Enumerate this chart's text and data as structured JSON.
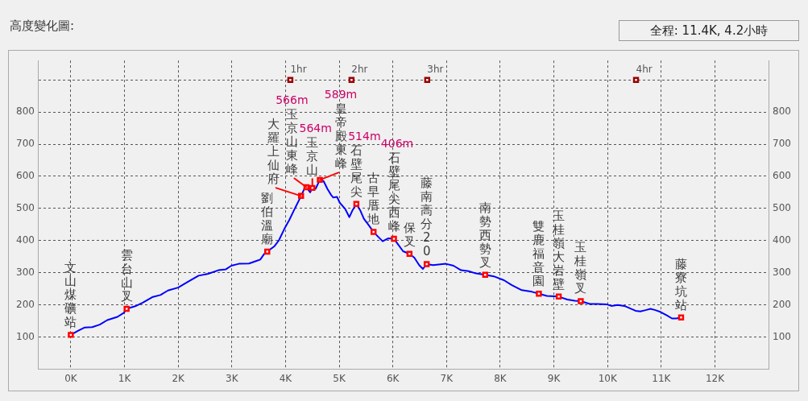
{
  "chart_data": {
    "type": "line",
    "title": "高度變化圖:",
    "subtitle": "全程: 11.4K, 4.2小時",
    "xlim": [
      -0.6,
      13
    ],
    "xticks": [
      {
        "value": 0,
        "label": "0K"
      },
      {
        "value": 1,
        "label": "1K"
      },
      {
        "value": 2,
        "label": "2K"
      },
      {
        "value": 3,
        "label": "3K"
      },
      {
        "value": 4,
        "label": "4K"
      },
      {
        "value": 5,
        "label": "5K"
      },
      {
        "value": 6,
        "label": "6K"
      },
      {
        "value": 7,
        "label": "7K"
      },
      {
        "value": 8,
        "label": "8K"
      },
      {
        "value": 9,
        "label": "9K"
      },
      {
        "value": 10,
        "label": "10K"
      },
      {
        "value": 11,
        "label": "11K"
      },
      {
        "value": 12,
        "label": "12K"
      },
      {
        "value": 13,
        "label": null
      }
    ],
    "ylim": [
      0,
      960
    ],
    "yticks": [
      100,
      200,
      300,
      400,
      500,
      600,
      700,
      800,
      {
        "value": 900,
        "label": null
      }
    ],
    "y2lim": [
      0,
      960
    ],
    "y2ticks": [
      100,
      200,
      300,
      400,
      500,
      600,
      700,
      800
    ],
    "grid": true,
    "line_style": "solid",
    "series": [
      {
        "type": "line",
        "color": "#0000ff",
        "marker": "none",
        "x": [
          0,
          0.14,
          0.26,
          0.4,
          0.54,
          0.68,
          0.87,
          0.99,
          1.04,
          1.2,
          1.34,
          1.53,
          1.67,
          1.81,
          2,
          2.19,
          2.38,
          2.56,
          2.75,
          2.89,
          2.99,
          3.13,
          3.32,
          3.46,
          3.53,
          3.6,
          3.66,
          3.79,
          3.88,
          3.98,
          4.07,
          4.16,
          4.29,
          4.35,
          4.39,
          4.46,
          4.5,
          4.56,
          4.64,
          4.71,
          4.78,
          4.85,
          4.89,
          4.96,
          5.01,
          5.11,
          5.19,
          5.25,
          5.32,
          5.39,
          5.46,
          5.55,
          5.64,
          5.72,
          5.81,
          5.91,
          6.02,
          6.09,
          6.19,
          6.31,
          6.4,
          6.49,
          6.56,
          6.63,
          6.75,
          6.99,
          7.13,
          7.27,
          7.41,
          7.55,
          7.72,
          7.88,
          8.07,
          8.21,
          8.4,
          8.59,
          8.72,
          8.87,
          9.01,
          9.09,
          9.25,
          9.39,
          9.5,
          9.67,
          9.81,
          9.98,
          10.07,
          10.19,
          10.33,
          10.52,
          10.61,
          10.71,
          10.8,
          10.89,
          10.99,
          11.11,
          11.2,
          11.28,
          11.37
        ],
        "values": [
          107,
          120,
          130,
          131,
          139,
          153,
          163,
          176,
          188,
          196,
          207,
          225,
          231,
          245,
          254,
          273,
          291,
          297,
          308,
          311,
          322,
          328,
          329,
          337,
          341,
          358,
          366,
          382,
          402,
          437,
          464,
          495,
          539,
          561,
          566,
          550,
          564,
          561,
          589,
          585,
          561,
          542,
          534,
          536,
          518,
          499,
          473,
          495,
          514,
          495,
          468,
          448,
          427,
          413,
          398,
          407,
          406,
          390,
          367,
          359,
          347,
          324,
          312,
          327,
          324,
          328,
          322,
          308,
          305,
          298,
          294,
          289,
          277,
          262,
          246,
          241,
          235,
          228,
          227,
          226,
          217,
          213,
          212,
          203,
          203,
          202,
          197,
          200,
          196,
          182,
          180,
          184,
          188,
          184,
          178,
          167,
          158,
          158,
          161
        ]
      },
      {
        "type": "scatter",
        "color": "#ff0000",
        "marker": "square",
        "x": [
          0,
          1.04,
          3.66,
          4.29,
          4.39,
          4.5,
          4.64,
          5.32,
          5.64,
          6.02,
          6.31,
          6.63,
          7.72,
          8.72,
          9.09,
          9.5,
          11.37
        ],
        "values": [
          107,
          188,
          366,
          539,
          566,
          564,
          589,
          514,
          427,
          406,
          359,
          327,
          294,
          235,
          226,
          212,
          161
        ],
        "value_labels": [
          "文山煤礦站",
          "雲台山叉",
          "劉伯溫廟",
          "大羅上仙府",
          "玉京山東峰",
          "玉京山",
          "皇帝殿東峰",
          "石壁尾尖",
          "古早厝地",
          "石壁尾尖西峰",
          "保叉",
          "藤南高分20",
          "南勢西勢叉",
          "雙鹿福音園",
          "玉桂嶺大岩壁",
          "玉桂嶺叉",
          "藤寮坑站"
        ]
      },
      {
        "type": "scatter",
        "color": "#990000",
        "marker": "square",
        "x": [
          4.09,
          5.23,
          6.64,
          10.53
        ],
        "values": [
          900,
          900,
          900,
          900
        ]
      }
    ],
    "annotations": [
      "566m",
      "564m",
      "589m",
      "514m",
      "406m",
      {
        "text": "1hr",
        "x": 4.09,
        "y": 900
      },
      {
        "text": "2hr",
        "x": 5.23,
        "y": 900
      },
      {
        "text": "3hr",
        "x": 6.64,
        "y": 900
      },
      {
        "text": "4hr",
        "x": 10.53,
        "y": 900
      }
    ]
  }
}
